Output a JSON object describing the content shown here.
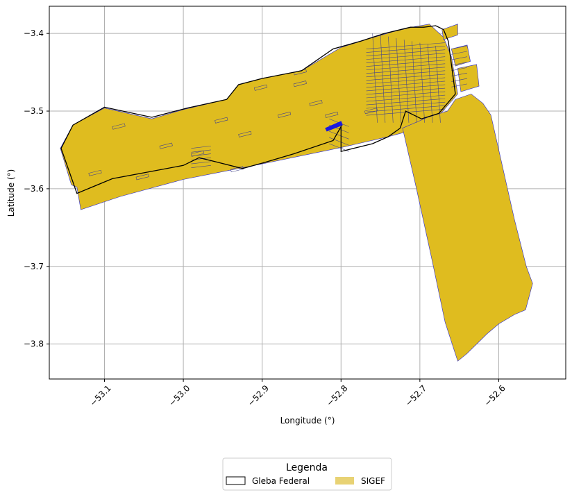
{
  "chart_data": {
    "type": "map",
    "xlabel": "Longitude (°)",
    "ylabel": "Latitude (°)",
    "xlim": [
      -53.17,
      -52.515
    ],
    "ylim": [
      -3.845,
      -3.365
    ],
    "x_ticks": [
      -53.1,
      -53.0,
      -52.9,
      -52.8,
      -52.7,
      -52.6
    ],
    "x_tick_labels": [
      "−53.1",
      "−53.0",
      "−52.9",
      "−52.8",
      "−52.7",
      "−52.6"
    ],
    "y_ticks": [
      -3.4,
      -3.5,
      -3.6,
      -3.7,
      -3.8
    ],
    "y_tick_labels": [
      "−3.4",
      "−3.5",
      "−3.6",
      "−3.7",
      "−3.8"
    ],
    "grid": true,
    "legend": {
      "title": "Legenda",
      "placement": "bottom-center",
      "entries": [
        {
          "label": "Gleba Federal",
          "style": "outline",
          "color": "#000000"
        },
        {
          "label": "SIGEF",
          "style": "fill",
          "color": "#e8d274"
        }
      ]
    },
    "colors": {
      "sigef_fill": "#dfbc1f",
      "sigef_edge": "#2a2ad0",
      "gleba_edge": "#000000",
      "grid": "#b0b0b0"
    },
    "layers": {
      "sigef_main": [
        [
          -53.135,
          -3.598
        ],
        [
          -53.13,
          -3.627
        ],
        [
          -53.08,
          -3.61
        ],
        [
          -53.0,
          -3.588
        ],
        [
          -52.9,
          -3.568
        ],
        [
          -52.8,
          -3.547
        ],
        [
          -52.74,
          -3.533
        ],
        [
          -52.7,
          -3.522
        ],
        [
          -52.676,
          -3.506
        ],
        [
          -52.652,
          -3.478
        ],
        [
          -52.66,
          -3.43
        ],
        [
          -52.67,
          -3.405
        ],
        [
          -52.688,
          -3.388
        ],
        [
          -52.71,
          -3.392
        ],
        [
          -52.735,
          -3.398
        ],
        [
          -52.765,
          -3.407
        ],
        [
          -52.8,
          -3.418
        ],
        [
          -52.85,
          -3.448
        ],
        [
          -52.9,
          -3.458
        ],
        [
          -52.93,
          -3.466
        ],
        [
          -52.945,
          -3.485
        ],
        [
          -53.0,
          -3.498
        ],
        [
          -53.04,
          -3.51
        ],
        [
          -53.1,
          -3.496
        ],
        [
          -53.14,
          -3.518
        ],
        [
          -53.156,
          -3.548
        ],
        [
          -53.142,
          -3.595
        ]
      ],
      "sigef_east": [
        [
          -52.722,
          -3.522
        ],
        [
          -52.705,
          -3.597
        ],
        [
          -52.685,
          -3.69
        ],
        [
          -52.668,
          -3.772
        ],
        [
          -52.652,
          -3.822
        ],
        [
          -52.64,
          -3.812
        ],
        [
          -52.623,
          -3.795
        ],
        [
          -52.615,
          -3.787
        ],
        [
          -52.6,
          -3.774
        ],
        [
          -52.58,
          -3.762
        ],
        [
          -52.566,
          -3.756
        ],
        [
          -52.557,
          -3.722
        ],
        [
          -52.565,
          -3.7
        ],
        [
          -52.58,
          -3.64
        ],
        [
          -52.6,
          -3.55
        ],
        [
          -52.61,
          -3.505
        ],
        [
          -52.62,
          -3.49
        ],
        [
          -52.635,
          -3.478
        ],
        [
          -52.655,
          -3.485
        ],
        [
          -52.665,
          -3.5
        ],
        [
          -52.69,
          -3.508
        ]
      ],
      "sigef_east_blocks": [
        [
          [
            -52.66,
            -3.42
          ],
          [
            -52.64,
            -3.415
          ],
          [
            -52.636,
            -3.436
          ],
          [
            -52.655,
            -3.442
          ]
        ],
        [
          [
            -52.652,
            -3.445
          ],
          [
            -52.628,
            -3.44
          ],
          [
            -52.625,
            -3.468
          ],
          [
            -52.648,
            -3.475
          ]
        ],
        [
          [
            -52.672,
            -3.395
          ],
          [
            -52.652,
            -3.388
          ],
          [
            -52.652,
            -3.402
          ],
          [
            -52.67,
            -3.408
          ]
        ]
      ],
      "gleba_federal": [
        [
          -53.135,
          -3.606
        ],
        [
          -53.09,
          -3.587
        ],
        [
          -53.0,
          -3.57
        ],
        [
          -52.98,
          -3.56
        ],
        [
          -52.96,
          -3.565
        ],
        [
          -52.925,
          -3.574
        ],
        [
          -52.9,
          -3.567
        ],
        [
          -52.86,
          -3.555
        ],
        [
          -52.81,
          -3.538
        ],
        [
          -52.8,
          -3.52
        ],
        [
          -52.8,
          -3.552
        ],
        [
          -52.76,
          -3.542
        ],
        [
          -52.74,
          -3.533
        ],
        [
          -52.725,
          -3.522
        ],
        [
          -52.718,
          -3.5
        ],
        [
          -52.698,
          -3.51
        ],
        [
          -52.676,
          -3.503
        ],
        [
          -52.655,
          -3.478
        ],
        [
          -52.66,
          -3.44
        ],
        [
          -52.664,
          -3.41
        ],
        [
          -52.67,
          -3.395
        ],
        [
          -52.68,
          -3.39
        ],
        [
          -52.695,
          -3.392
        ],
        [
          -52.712,
          -3.392
        ],
        [
          -52.745,
          -3.4
        ],
        [
          -52.775,
          -3.41
        ],
        [
          -52.81,
          -3.42
        ],
        [
          -52.85,
          -3.448
        ],
        [
          -52.9,
          -3.458
        ],
        [
          -52.93,
          -3.466
        ],
        [
          -52.945,
          -3.485
        ],
        [
          -52.995,
          -3.496
        ],
        [
          -53.04,
          -3.508
        ],
        [
          -53.1,
          -3.495
        ],
        [
          -53.14,
          -3.518
        ],
        [
          -53.155,
          -3.548
        ]
      ]
    }
  }
}
